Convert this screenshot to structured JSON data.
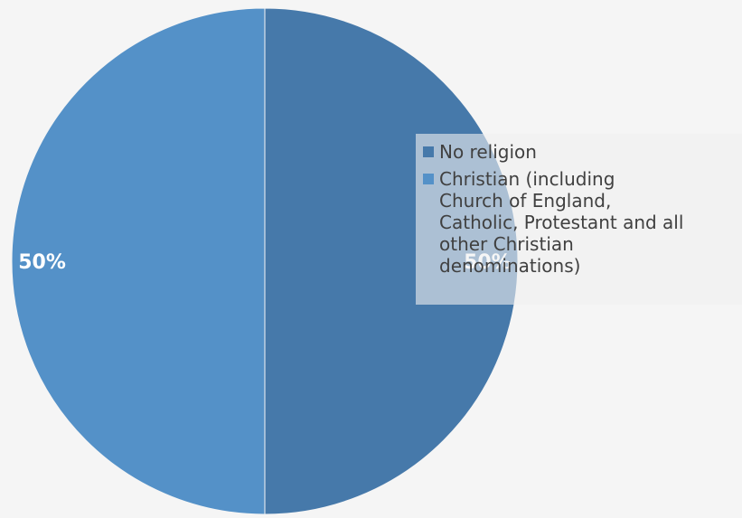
{
  "chart_data": {
    "type": "pie",
    "categories": [
      "No religion",
      "Christian (including Church of England, Catholic, Protestant and all other Christian denominations)"
    ],
    "values": [
      50,
      50
    ],
    "labels": [
      "50%",
      "50%"
    ],
    "colors": [
      "#4679aa",
      "#5491c8"
    ],
    "legend": "right",
    "legend_lines": [
      [
        "No religion"
      ],
      [
        "Christian (including",
        "Church of England,",
        "Catholic, Protestant and all",
        "other Christian",
        "denominations)"
      ]
    ]
  }
}
